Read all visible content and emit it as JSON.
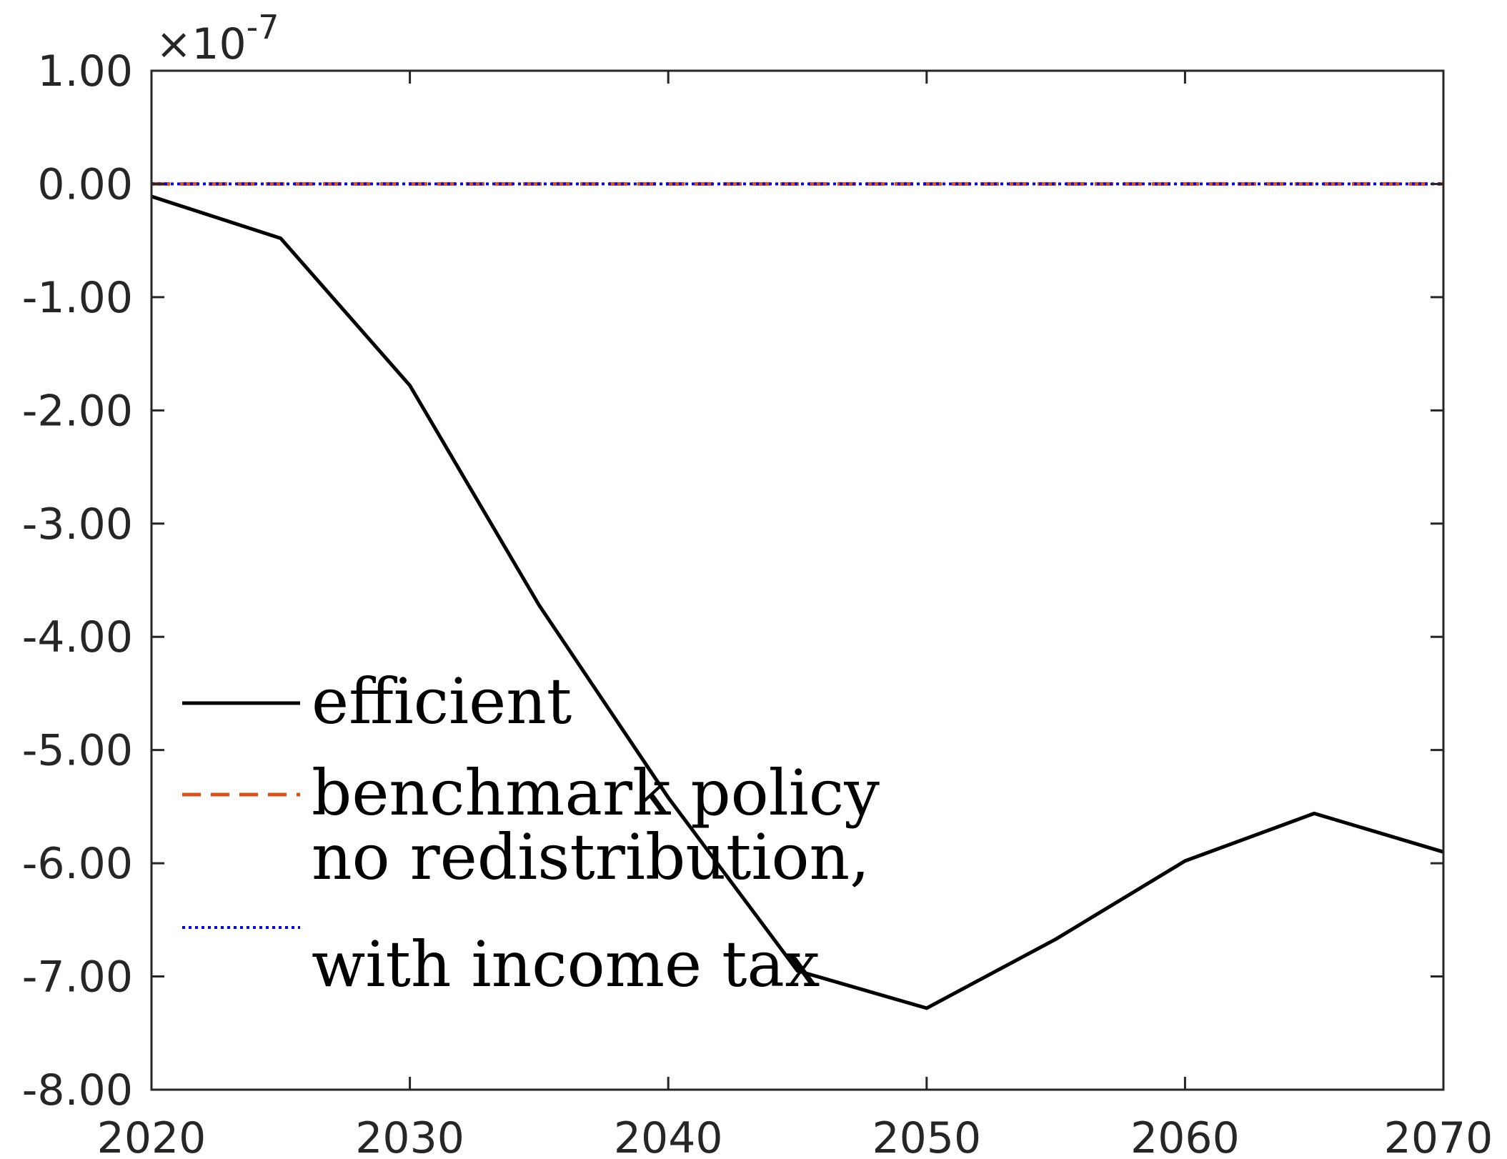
{
  "chart_data": {
    "type": "line",
    "y_multiplier_label": {
      "prefix": "×10",
      "exponent": "-7"
    },
    "xlim": [
      2020,
      2070
    ],
    "ylim": [
      -8,
      1
    ],
    "x_ticks": [
      2020,
      2030,
      2040,
      2050,
      2060,
      2070
    ],
    "x_tick_labels": [
      "2020",
      "2030",
      "2040",
      "2050",
      "2060",
      "2070"
    ],
    "y_ticks": [
      1,
      0,
      -1,
      -2,
      -3,
      -4,
      -5,
      -6,
      -7,
      -8
    ],
    "y_tick_labels": [
      "1.00",
      "0.00",
      "-1.00",
      "-2.00",
      "-3.00",
      "-4.00",
      "-5.00",
      "-6.00",
      "-7.00",
      "-8.00"
    ],
    "x": [
      2020,
      2025,
      2030,
      2035,
      2040,
      2045,
      2050,
      2055,
      2060,
      2065,
      2070
    ],
    "series": [
      {
        "name": "efficient",
        "color": "#000000",
        "dash": "solid",
        "values": [
          -0.11,
          -0.48,
          -1.78,
          -3.72,
          -5.42,
          -6.95,
          -7.28,
          -6.67,
          -5.98,
          -5.56,
          -5.9
        ]
      },
      {
        "name": "benchmark policy",
        "color": "#D95319",
        "dash": "dashed",
        "values": [
          0,
          0,
          0,
          0,
          0,
          0,
          0,
          0,
          0,
          0,
          0
        ]
      },
      {
        "name_lines": [
          "no redistribution,",
          "with income tax"
        ],
        "color": "#0000FF",
        "dash": "dotted",
        "values": [
          0,
          0,
          0,
          0,
          0,
          0,
          0,
          0,
          0,
          0,
          0
        ]
      }
    ],
    "grid": false,
    "legend_position": "lower-left inside",
    "legend_box": false
  }
}
